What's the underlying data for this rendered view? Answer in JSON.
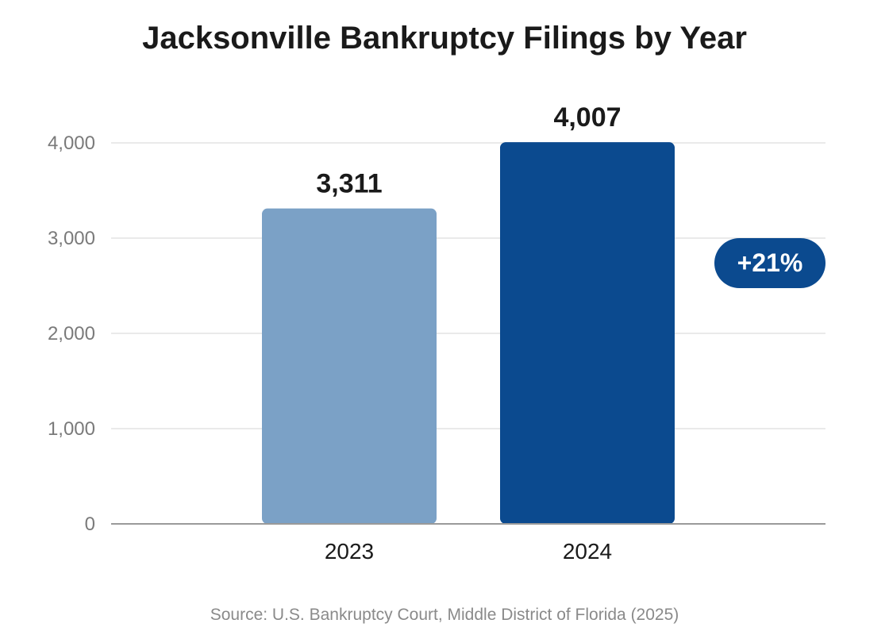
{
  "chart_data": {
    "type": "bar",
    "title": "Jacksonville Bankruptcy Filings by Year",
    "categories": [
      "2023",
      "2024"
    ],
    "values": [
      3311,
      4007
    ],
    "value_labels": [
      "3,311",
      "4,007"
    ],
    "bar_colors": [
      "#7ba1c6",
      "#0b4a8f"
    ],
    "ylim": [
      0,
      4000
    ],
    "yticks": [
      0,
      1000,
      2000,
      3000,
      4000
    ],
    "ytick_labels": [
      "0",
      "1,000",
      "2,000",
      "3,000",
      "4,000"
    ],
    "grid": true,
    "xlabel": "",
    "ylabel": "",
    "annotation": {
      "text": "+21%",
      "color": "#0b4a8f"
    }
  },
  "source": "Source: U.S. Bankruptcy Court, Middle District of Florida (2025)"
}
